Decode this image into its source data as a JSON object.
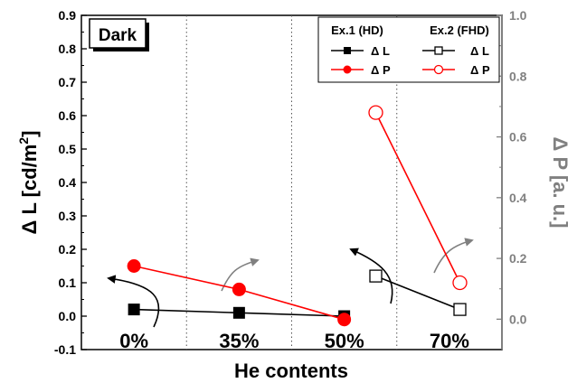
{
  "chart_data": {
    "type": "line",
    "xlabel": "He contents",
    "ylabel_left": "Δ L [cd/m",
    "ylabel_left_sup": "2",
    "ylabel_left_end": "]",
    "ylabel_right": "Δ P [a. u.]",
    "categories": [
      "0%",
      "35%",
      "50%",
      "70%"
    ],
    "y_left": {
      "range": [
        -0.1,
        0.9
      ],
      "ticks": [
        "-0.1",
        "0.0",
        "0.1",
        "0.2",
        "0.3",
        "0.4",
        "0.5",
        "0.6",
        "0.7",
        "0.8",
        "0.9"
      ]
    },
    "y_right": {
      "range": [
        -0.1,
        1.0
      ],
      "ticks": [
        "0.0",
        "0.2",
        "0.4",
        "0.6",
        "0.8",
        "1.0"
      ]
    },
    "condition_label": "Dark",
    "legend": {
      "group1_title": "Ex.1 (HD)",
      "group2_title": "Ex.2 (FHD)",
      "dl_label": "Δ L",
      "dp_label": "Δ P"
    },
    "series": [
      {
        "name": "Ex.1 Δ L",
        "axis": "left",
        "color": "#000000",
        "marker": "filled-square",
        "x": [
          0,
          1,
          2
        ],
        "values": [
          0.02,
          0.01,
          0.0
        ]
      },
      {
        "name": "Ex.1 Δ P",
        "axis": "left",
        "color": "#ff0000",
        "marker": "filled-circle",
        "x": [
          0,
          1,
          2
        ],
        "values": [
          0.15,
          0.08,
          -0.01
        ]
      },
      {
        "name": "Ex.2 Δ L",
        "axis": "left",
        "color": "#000000",
        "marker": "open-square",
        "x": [
          2.3,
          3.1
        ],
        "values": [
          0.12,
          0.02
        ]
      },
      {
        "name": "Ex.2 Δ P",
        "axis": "right",
        "color": "#ff0000",
        "marker": "open-circle",
        "x": [
          2.3,
          3.1
        ],
        "values": [
          0.68,
          0.12
        ]
      }
    ],
    "grid": "vertical dotted separators between categories",
    "legend_position": "top-right"
  }
}
